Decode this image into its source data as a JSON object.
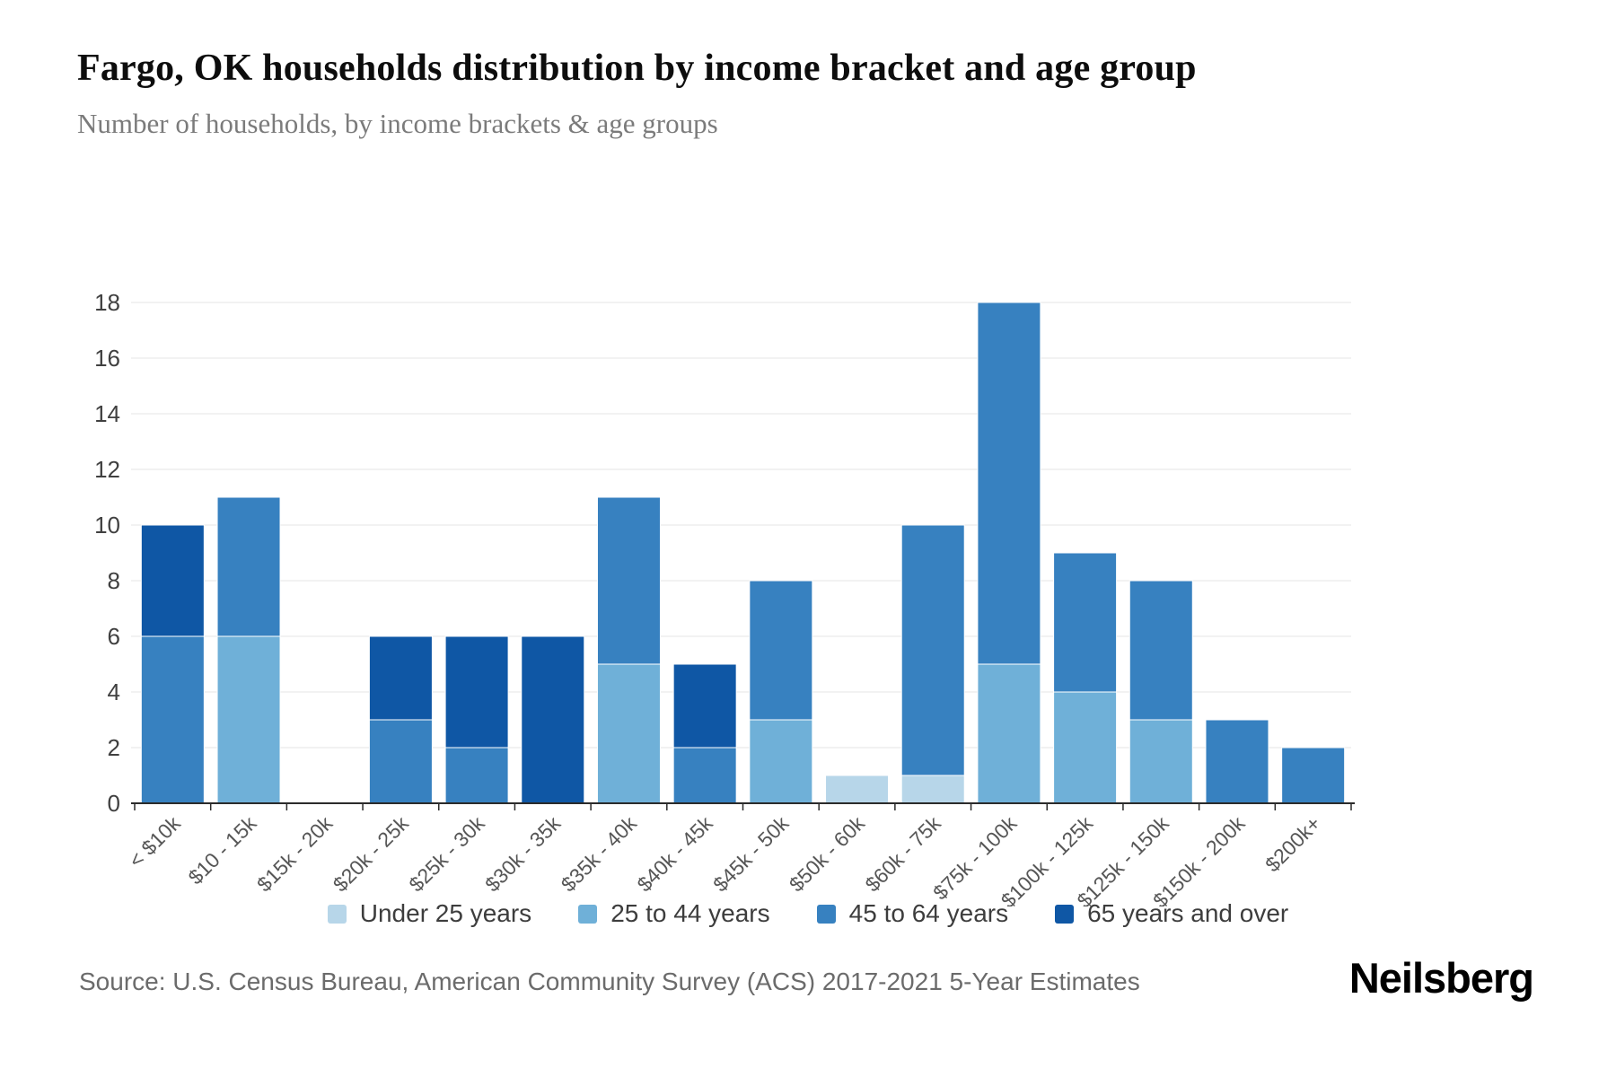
{
  "header": {
    "title": "Fargo, OK households distribution by income bracket and age group",
    "subtitle": "Number of households, by income brackets & age groups"
  },
  "chart_data": {
    "type": "bar",
    "stacked": true,
    "grid": true,
    "legend_position": "bottom",
    "ylim": [
      0,
      18
    ],
    "yticks": [
      0,
      2,
      4,
      6,
      8,
      10,
      12,
      14,
      16,
      18
    ],
    "categories": [
      "< $10k",
      "$10 - 15k",
      "$15k - 20k",
      "$20k - 25k",
      "$25k - 30k",
      "$30k - 35k",
      "$35k - 40k",
      "$40k - 45k",
      "$45k - 50k",
      "$50k - 60k",
      "$60k - 75k",
      "$75k - 100k",
      "$100k - 125k",
      "$125k - 150k",
      "$150k - 200k",
      "$200k+"
    ],
    "series": [
      {
        "name": "Under 25 years",
        "color": "#b7d6e9",
        "values": [
          0,
          0,
          0,
          0,
          0,
          0,
          0,
          0,
          0,
          1,
          1,
          0,
          0,
          0,
          0,
          0
        ]
      },
      {
        "name": "25 to 44 years",
        "color": "#6fb0d8",
        "values": [
          0,
          6,
          0,
          0,
          0,
          0,
          5,
          0,
          3,
          0,
          0,
          5,
          4,
          3,
          0,
          0
        ]
      },
      {
        "name": "45 to 64 years",
        "color": "#3781c0",
        "values": [
          6,
          5,
          0,
          3,
          2,
          0,
          6,
          2,
          5,
          0,
          9,
          13,
          5,
          5,
          3,
          2
        ]
      },
      {
        "name": "65 years and over",
        "color": "#0f57a5",
        "values": [
          4,
          0,
          0,
          3,
          4,
          6,
          0,
          3,
          0,
          0,
          0,
          0,
          0,
          0,
          0,
          0
        ]
      }
    ],
    "totals": [
      10,
      11,
      0,
      6,
      6,
      6,
      11,
      5,
      8,
      1,
      10,
      18,
      9,
      8,
      3,
      2
    ]
  },
  "colors": {
    "grid": "#ededed",
    "axis": "#2b2b2b",
    "y_label": "#404040",
    "x_label": "#565656"
  },
  "footer": {
    "source": "Source: U.S. Census Bureau, American Community Survey (ACS) 2017-2021 5-Year Estimates",
    "brand": "Neilsberg"
  }
}
